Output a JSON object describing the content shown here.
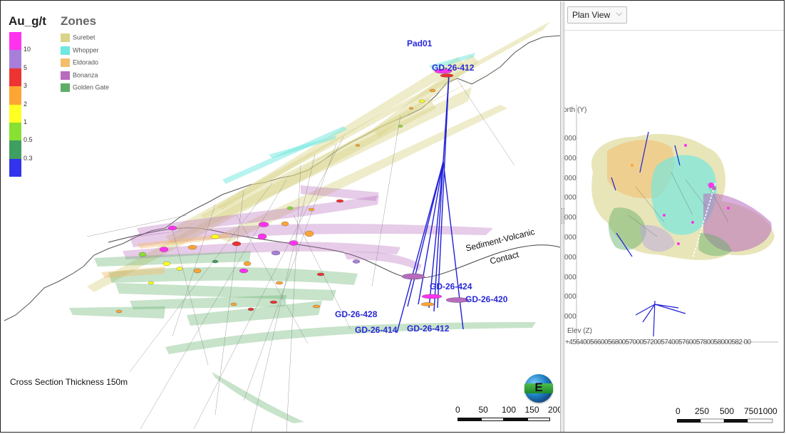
{
  "legend": {
    "au_title": "Au_g/t",
    "zones_title": "Zones",
    "ramp": [
      {
        "label": "10",
        "color": "#ff33ee"
      },
      {
        "label": "5",
        "color": "#a77fd8"
      },
      {
        "label": "3",
        "color": "#ee3333"
      },
      {
        "label": "2",
        "color": "#ffa533"
      },
      {
        "label": "1",
        "color": "#ffff22"
      },
      {
        "label": "0.5",
        "color": "#88e033"
      },
      {
        "label": "0.3",
        "color": "#3f9f60"
      },
      {
        "label": "",
        "color": "#3333ee"
      }
    ],
    "zones": [
      {
        "label": "Surebet",
        "color": "#d9d48a"
      },
      {
        "label": "Whopper",
        "color": "#6fe8e0"
      },
      {
        "label": "Eldorado",
        "color": "#f4bd6e"
      },
      {
        "label": "Bonanza",
        "color": "#b86cbd"
      },
      {
        "label": "Golden Gate",
        "color": "#5fae66"
      }
    ]
  },
  "labels": {
    "pad": "Pad01",
    "holes_top": "GD-26-412",
    "hole_424": "GD-26-424",
    "hole_420": "GD-26-420",
    "hole_428": "GD-26-428",
    "hole_414": "GD-26-414",
    "hole_412": "GD-26-412",
    "contact_line1": "Sediment-Volcanic",
    "contact_line2": "Contact",
    "cross_section": "Cross Section Thickness 150m"
  },
  "compass": {
    "letter": "E"
  },
  "main_scalebar": {
    "ticks": [
      "0",
      "50",
      "100",
      "150",
      "200"
    ]
  },
  "side_view": {
    "dropdown_value": "Plan View",
    "north_label": "orth (Y)",
    "elev_label": "Elev (Z)",
    "y_ticks": [
      "000",
      "000",
      "000",
      "000",
      "000",
      "000",
      "000",
      "000",
      "000",
      "000"
    ],
    "x_ticks_text": "+4564005660056800570005720057400576005780058000582 00",
    "scalebar_ticks": [
      "0",
      "250",
      "500",
      "7501000"
    ]
  }
}
